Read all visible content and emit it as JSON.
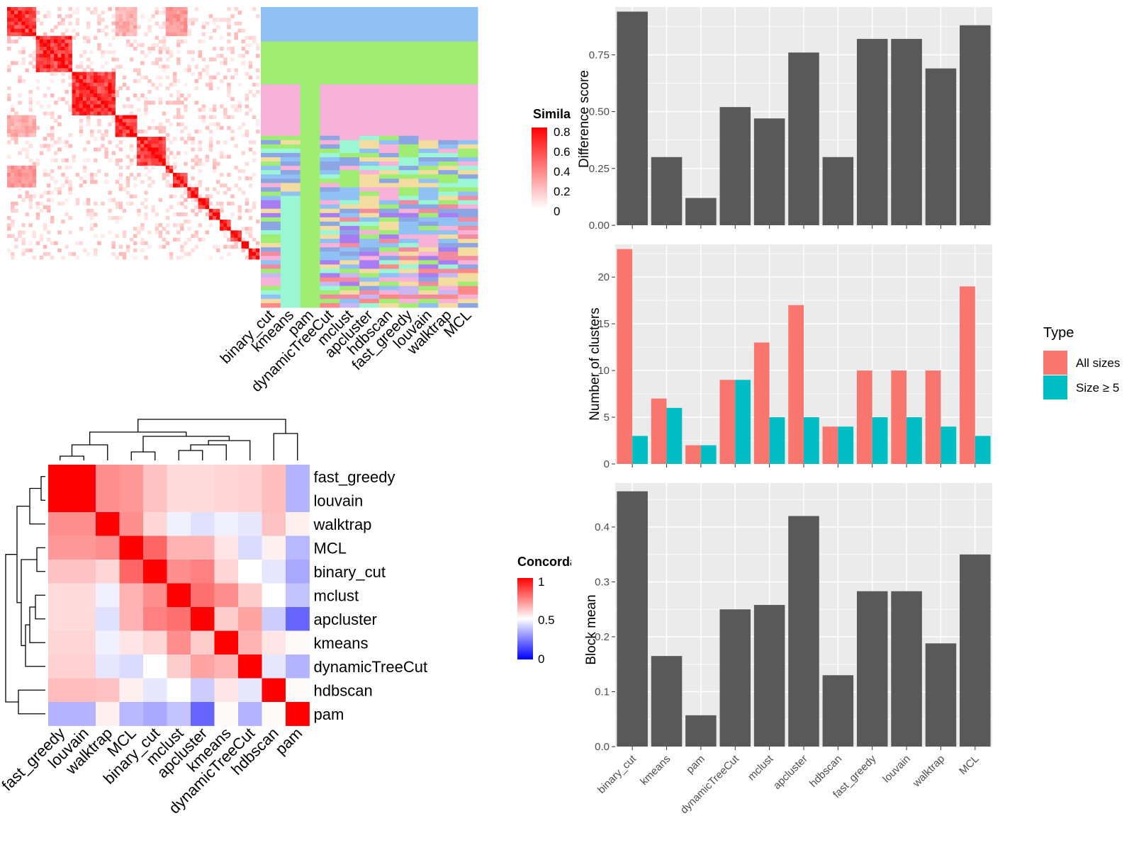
{
  "methods_order": [
    "binary_cut",
    "kmeans",
    "pam",
    "dynamicTreeCut",
    "mclust",
    "apcluster",
    "hdbscan",
    "fast_greedy",
    "louvain",
    "walktrap",
    "MCL"
  ],
  "similarity_heatmap": {
    "legend_title": "Similarity",
    "legend_ticks": [
      "0.8",
      "0.6",
      "0.4",
      "0.2",
      "0"
    ]
  },
  "partition_heatmap": {
    "column_labels": [
      "binary_cut",
      "kmeans",
      "pam",
      "dynamicTreeCut",
      "mclust",
      "apcluster",
      "hdbscan",
      "fast_greedy",
      "louvain",
      "walktrap",
      "MCL"
    ]
  },
  "concordance_heatmap": {
    "legend_title": "Concordance",
    "legend_ticks": [
      "1",
      "0.5",
      "0"
    ],
    "labels": [
      "fast_greedy",
      "louvain",
      "walktrap",
      "MCL",
      "binary_cut",
      "mclust",
      "apcluster",
      "kmeans",
      "dynamicTreeCut",
      "hdbscan",
      "pam"
    ],
    "values": [
      [
        1.0,
        1.0,
        0.72,
        0.7,
        0.62,
        0.57,
        0.57,
        0.58,
        0.59,
        0.63,
        0.35
      ],
      [
        1.0,
        1.0,
        0.72,
        0.7,
        0.62,
        0.57,
        0.57,
        0.58,
        0.59,
        0.63,
        0.35
      ],
      [
        0.72,
        0.72,
        1.0,
        0.72,
        0.58,
        0.47,
        0.44,
        0.47,
        0.45,
        0.62,
        0.53
      ],
      [
        0.7,
        0.7,
        0.72,
        1.0,
        0.8,
        0.65,
        0.65,
        0.55,
        0.43,
        0.53,
        0.36
      ],
      [
        0.62,
        0.62,
        0.58,
        0.8,
        1.0,
        0.72,
        0.75,
        0.58,
        0.5,
        0.45,
        0.33
      ],
      [
        0.57,
        0.57,
        0.47,
        0.65,
        0.72,
        1.0,
        0.78,
        0.72,
        0.6,
        0.5,
        0.38
      ],
      [
        0.57,
        0.57,
        0.44,
        0.65,
        0.75,
        0.78,
        1.0,
        0.6,
        0.68,
        0.4,
        0.2
      ],
      [
        0.58,
        0.58,
        0.47,
        0.55,
        0.58,
        0.72,
        0.6,
        1.0,
        0.65,
        0.55,
        0.51
      ],
      [
        0.59,
        0.59,
        0.45,
        0.43,
        0.5,
        0.6,
        0.68,
        0.65,
        1.0,
        0.45,
        0.35
      ],
      [
        0.63,
        0.63,
        0.62,
        0.53,
        0.45,
        0.5,
        0.4,
        0.55,
        0.45,
        1.0,
        0.51
      ],
      [
        0.35,
        0.35,
        0.53,
        0.36,
        0.33,
        0.38,
        0.2,
        0.51,
        0.35,
        0.51,
        1.0
      ]
    ]
  },
  "bar_panels": {
    "difference_score": {
      "ylabel": "Difference score",
      "ticks": [
        "0.00",
        "0.25",
        "0.50",
        "0.75"
      ]
    },
    "num_clusters": {
      "ylabel": "Number of clusters",
      "ticks": [
        "0",
        "5",
        "10",
        "15",
        "20"
      ],
      "legend_title": "Type",
      "legend_items": [
        "All sizes",
        "Size ≥ 5"
      ]
    },
    "block_mean": {
      "ylabel": "Block mean",
      "ticks": [
        "0.0",
        "0.1",
        "0.2",
        "0.3",
        "0.4"
      ]
    }
  },
  "colors": {
    "bar_gray": "#595959",
    "all_sizes": "#F8766D",
    "size_ge5": "#00BFC4",
    "panel_bg": "#EBEBEB",
    "grid": "#FFFFFF",
    "heat_high": "#FF0000",
    "heat_mid": "#FFFFFF",
    "heat_low": "#0000FF"
  },
  "chart_data": [
    {
      "type": "heatmap",
      "name": "Similarity",
      "values": "sorted term similarity matrix with red diagonal blocks",
      "legend_range": [
        0,
        0.8
      ]
    },
    {
      "type": "heatmap",
      "name": "Concordance",
      "categories": [
        "fast_greedy",
        "louvain",
        "walktrap",
        "MCL",
        "binary_cut",
        "mclust",
        "apcluster",
        "kmeans",
        "dynamicTreeCut",
        "hdbscan",
        "pam"
      ],
      "legend_range": [
        0,
        1
      ]
    },
    {
      "type": "bar",
      "categories": [
        "binary_cut",
        "kmeans",
        "pam",
        "dynamicTreeCut",
        "mclust",
        "apcluster",
        "hdbscan",
        "fast_greedy",
        "louvain",
        "walktrap",
        "MCL"
      ],
      "values": [
        0.94,
        0.3,
        0.12,
        0.52,
        0.47,
        0.76,
        0.3,
        0.82,
        0.82,
        0.69,
        0.88
      ],
      "ylabel": "Difference score",
      "ylim": [
        0,
        0.96
      ]
    },
    {
      "type": "bar",
      "categories": [
        "binary_cut",
        "kmeans",
        "pam",
        "dynamicTreeCut",
        "mclust",
        "apcluster",
        "hdbscan",
        "fast_greedy",
        "louvain",
        "walktrap",
        "MCL"
      ],
      "series": [
        {
          "name": "All sizes",
          "values": [
            23,
            7,
            2,
            9,
            13,
            17,
            4,
            10,
            10,
            10,
            19
          ]
        },
        {
          "name": "Size ≥ 5",
          "values": [
            3,
            6,
            2,
            9,
            5,
            5,
            4,
            5,
            5,
            4,
            3
          ]
        }
      ],
      "ylabel": "Number of clusters",
      "ylim": [
        0,
        23.5
      ],
      "legend": "right"
    },
    {
      "type": "bar",
      "categories": [
        "binary_cut",
        "kmeans",
        "pam",
        "dynamicTreeCut",
        "mclust",
        "apcluster",
        "hdbscan",
        "fast_greedy",
        "louvain",
        "walktrap",
        "MCL"
      ],
      "values": [
        0.465,
        0.165,
        0.057,
        0.25,
        0.258,
        0.42,
        0.13,
        0.283,
        0.283,
        0.188,
        0.35
      ],
      "ylabel": "Block mean",
      "ylim": [
        0,
        0.48
      ]
    }
  ]
}
